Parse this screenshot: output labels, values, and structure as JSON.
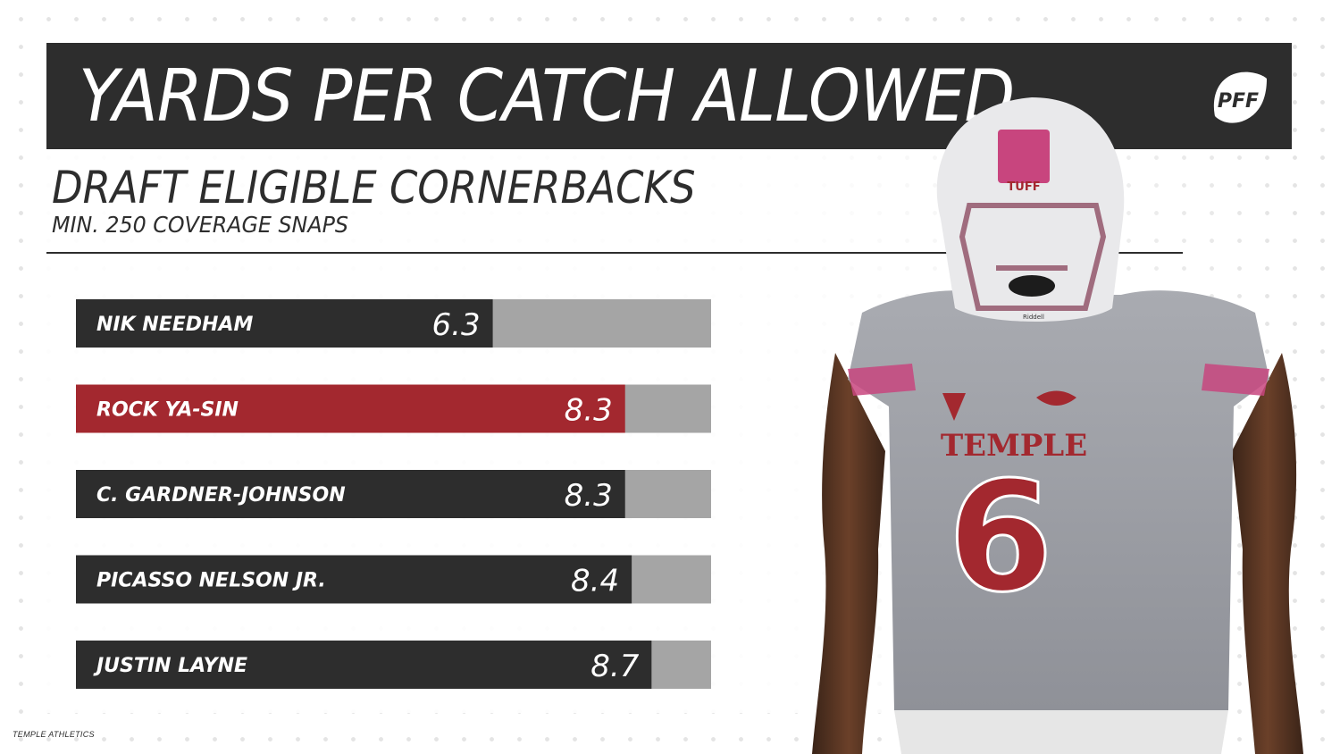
{
  "header": {
    "title": "YARDS PER CATCH ALLOWED",
    "subtitle": "DRAFT ELIGIBLE CORNERBACKS",
    "note": "MIN. 250 COVERAGE SNAPS",
    "logo_text": "PFF"
  },
  "credit": "TEMPLE ATHLETICS",
  "player_graphic": {
    "jersey_text": "TEMPLE",
    "jersey_number": "6",
    "helmet_text": "TUFF",
    "facemask_text": "Riddell"
  },
  "colors": {
    "dark": "#2d2d2d",
    "highlight": "#a3282f",
    "track": "#a5a5a5",
    "text_light": "#ffffff"
  },
  "chart_data": {
    "type": "bar",
    "orientation": "horizontal",
    "categories": [
      "NIK NEEDHAM",
      "ROCK YA-SIN",
      "C. GARDNER-JOHNSON",
      "PICASSO NELSON JR.",
      "JUSTIN LAYNE"
    ],
    "values": [
      6.3,
      8.3,
      8.3,
      8.4,
      8.7
    ],
    "value_labels": [
      "6.3",
      "8.3",
      "8.3",
      "8.4",
      "8.7"
    ],
    "highlighted": [
      false,
      true,
      false,
      false,
      false
    ],
    "xlim": [
      0,
      9.6
    ],
    "grid": false,
    "legend": "none"
  }
}
